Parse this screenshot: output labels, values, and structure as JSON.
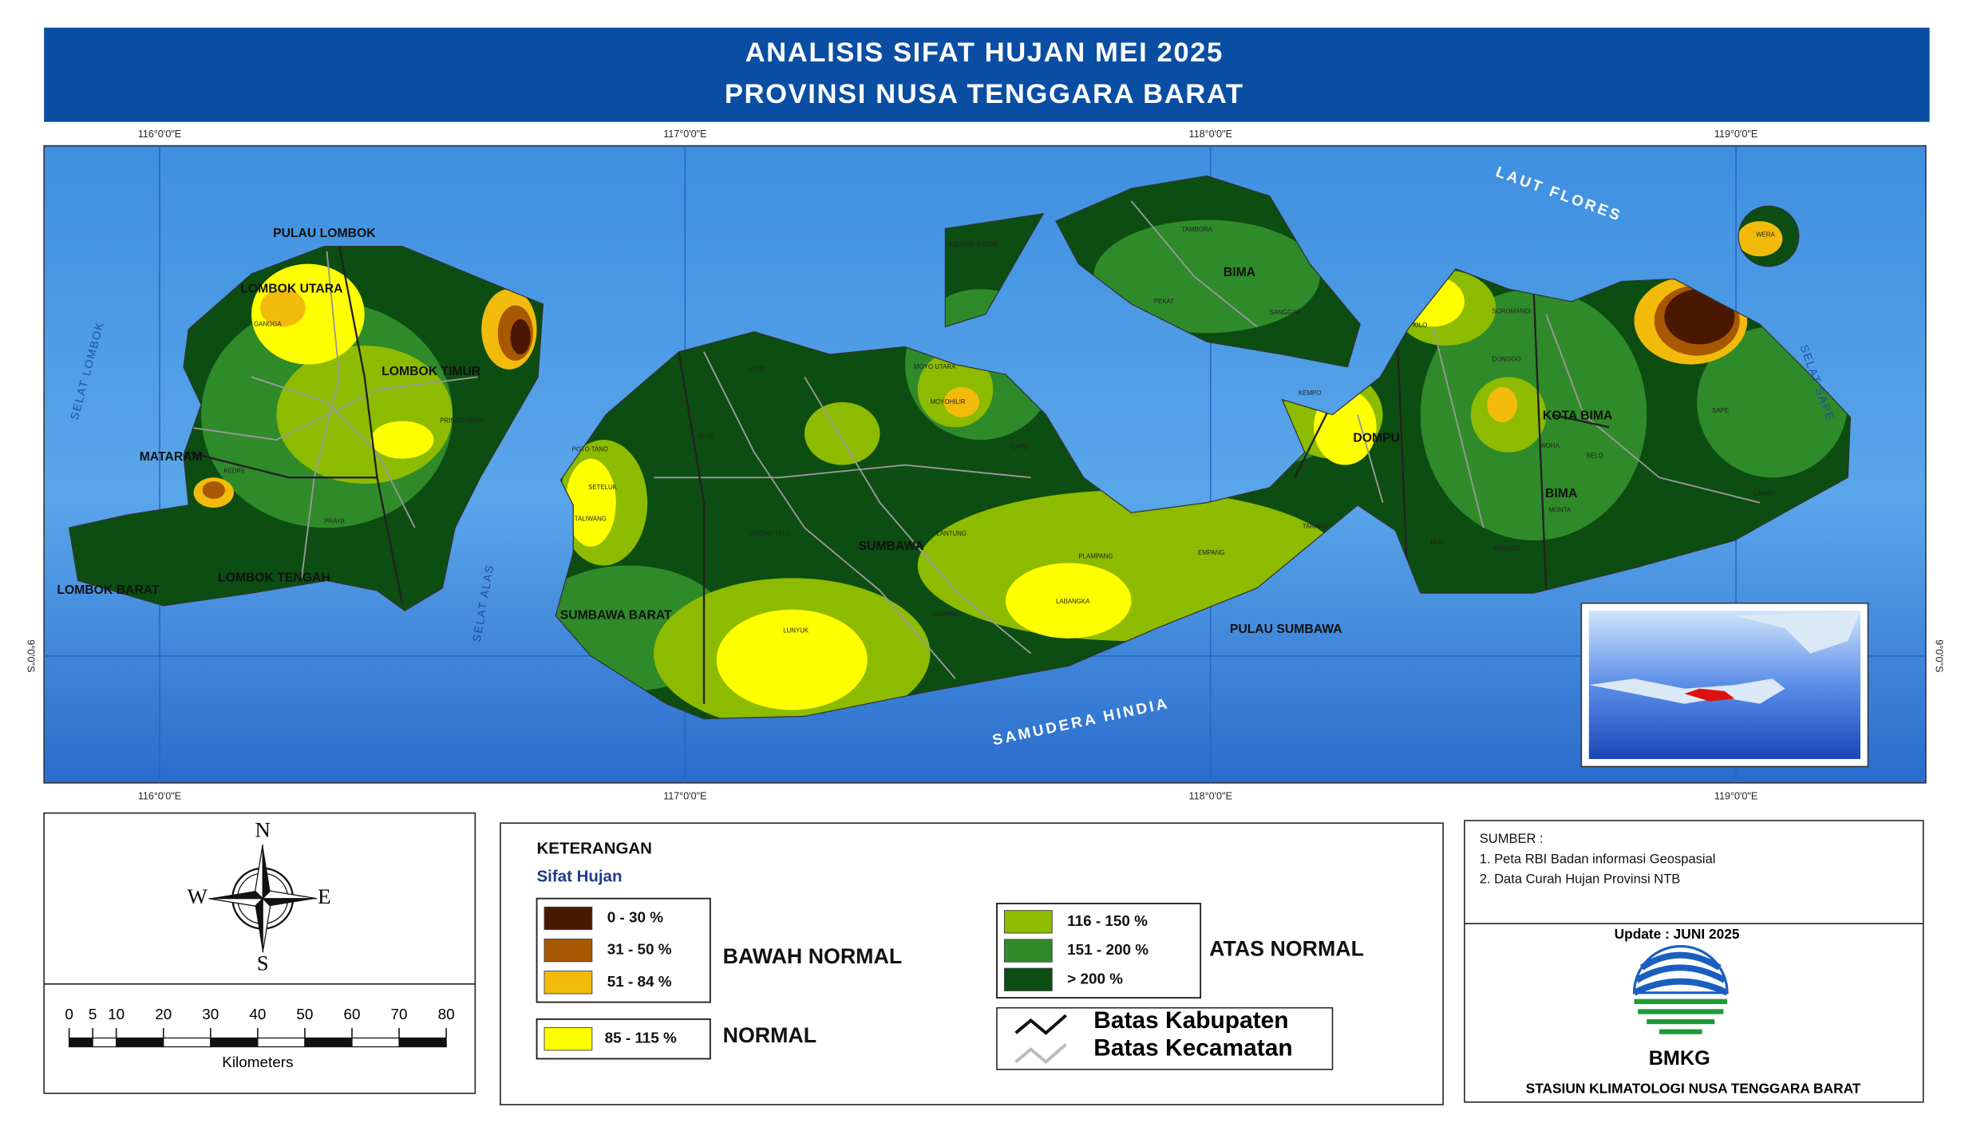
{
  "header": {
    "title_line1": "ANALISIS SIFAT HUJAN MEI 2025",
    "title_line2": "PROVINSI NUSA TENGGARA BARAT"
  },
  "map": {
    "longitude_labels": [
      "116°0'0\"E",
      "117°0'0\"E",
      "118°0'0\"E",
      "119°0'0\"E"
    ],
    "latitude_label": "9°0'0\"S",
    "water_labels": [
      "LAUT FLORES",
      "SAMUDERA HINDIA",
      "SELAT LOMBOK",
      "SELAT ALAS",
      "SELAT SAPE"
    ],
    "region_labels": [
      "PULAU LOMBOK",
      "LOMBOK UTARA",
      "LOMBOK TIMUR",
      "MATARAM",
      "LOMBOK BARAT",
      "LOMBOK TENGAH",
      "SUMBAWA BARAT",
      "SUMBAWA",
      "DOMPU",
      "BIMA",
      "KOTA BIMA",
      "BIMA",
      "PULAU SUMBAWA"
    ],
    "place_labels": [
      "LUNYUK",
      "LABANGKA",
      "PLAMPANG",
      "EMPANG",
      "KILO",
      "WERA",
      "TAMBORA",
      "PEKAT",
      "SANGGAR",
      "LABUHAN BADAS",
      "MOYO UTARA",
      "MOYOHILIR",
      "ALAS",
      "UTAN",
      "TALIWANG",
      "SETELUK",
      "POTO TANO",
      "KEMPO",
      "TARANO",
      "LAPE",
      "ROPANG",
      "LANTUNG",
      "ORONG TELU",
      "SOROMANDI",
      "DONGGO",
      "PARADO",
      "MONTA",
      "LAMBU",
      "SAPE",
      "WOHA",
      "BELO",
      "HUU",
      "GANGGA",
      "PRINGGABAYA",
      "PRAYA",
      "KEDIRI"
    ]
  },
  "north_arrow": {
    "n": "N",
    "s": "S",
    "e": "E",
    "w": "W"
  },
  "scale_bar": {
    "ticks": [
      0,
      5,
      10,
      20,
      30,
      40,
      50,
      60,
      70,
      80
    ],
    "unit": "Kilometers"
  },
  "legend": {
    "title": "KETERANGAN",
    "subtitle": "Sifat Hujan",
    "groups": [
      {
        "name": "BAWAH NORMAL",
        "classes": [
          {
            "label": "0 - 30 %",
            "color": "#4a1800"
          },
          {
            "label": "31 - 50 %",
            "color": "#a85800"
          },
          {
            "label": "51 - 84 %",
            "color": "#f2bb0c"
          }
        ]
      },
      {
        "name": "NORMAL",
        "classes": [
          {
            "label": "85 - 115 %",
            "color": "#ffff00"
          }
        ]
      },
      {
        "name": "ATAS NORMAL",
        "classes": [
          {
            "label": "116 - 150 %",
            "color": "#8dbb00"
          },
          {
            "label": "151 - 200 %",
            "color": "#2f8a2a"
          },
          {
            "label": "> 200 %",
            "color": "#0c4d12"
          }
        ]
      }
    ],
    "lines": [
      "Batas Kabupaten",
      "Batas Kecamatan"
    ]
  },
  "source": {
    "title": "SUMBER :",
    "items": [
      "1. Peta RBI Badan informasi Geospasial",
      "2. Data Curah Hujan Provinsi NTB"
    ],
    "update": "Update : JUNI 2025",
    "logo_text": "BMKG",
    "station": "STASIUN KLIMATOLOGI NUSA TENGGARA BARAT"
  }
}
